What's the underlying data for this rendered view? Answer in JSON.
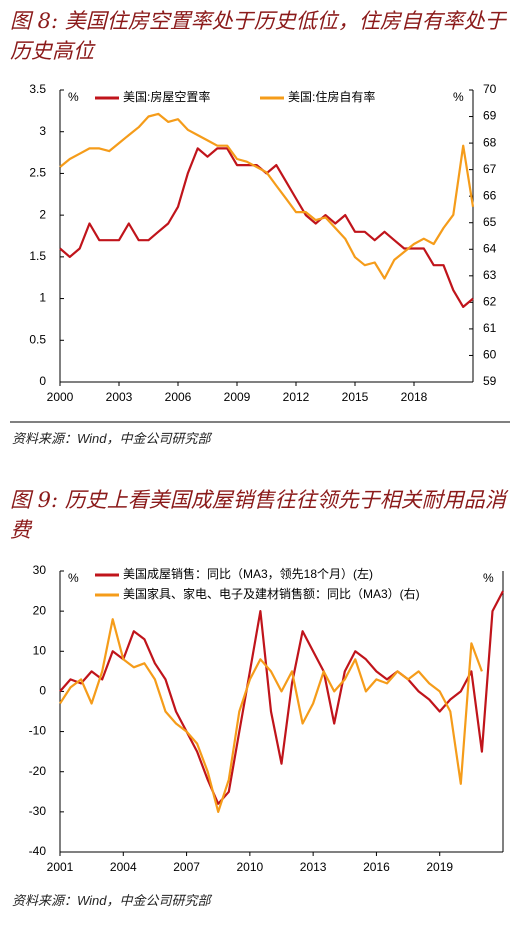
{
  "chart_data": [
    {
      "type": "line",
      "title": "图 8: 美国住房空置率处于历史低位，住房自有率处于历史高位",
      "source": "资料来源：Wind，中金公司研究部",
      "y_unit": "%",
      "y2_unit": "%",
      "legend": "top",
      "x": [
        2000,
        2000.5,
        2001,
        2001.5,
        2002,
        2002.5,
        2003,
        2003.5,
        2004,
        2004.5,
        2005,
        2005.5,
        2006,
        2006.5,
        2007,
        2007.5,
        2008,
        2008.5,
        2009,
        2009.5,
        2010,
        2010.5,
        2011,
        2011.5,
        2012,
        2012.5,
        2013,
        2013.5,
        2014,
        2014.5,
        2015,
        2015.5,
        2016,
        2016.5,
        2017,
        2017.5,
        2018,
        2018.5,
        2019,
        2019.5,
        2020,
        2020.5,
        2021
      ],
      "xlim": [
        2000,
        2021
      ],
      "xticks": [
        2000,
        2003,
        2006,
        2009,
        2012,
        2015,
        2018
      ],
      "ylim": [
        0,
        3.5
      ],
      "yticks": [
        0,
        0.5,
        1,
        1.5,
        2,
        2.5,
        3,
        3.5
      ],
      "y2lim": [
        59,
        70
      ],
      "y2ticks": [
        59,
        60,
        61,
        62,
        63,
        64,
        65,
        66,
        67,
        68,
        69,
        70
      ],
      "series": [
        {
          "name": "美国:房屋空置率",
          "color": "#c0141b",
          "values": [
            1.6,
            1.5,
            1.6,
            1.9,
            1.7,
            1.7,
            1.7,
            1.9,
            1.7,
            1.7,
            1.8,
            1.9,
            2.1,
            2.5,
            2.8,
            2.7,
            2.8,
            2.8,
            2.6,
            2.6,
            2.6,
            2.5,
            2.6,
            2.4,
            2.2,
            2.0,
            1.9,
            2.0,
            1.9,
            2.0,
            1.8,
            1.8,
            1.7,
            1.8,
            1.7,
            1.6,
            1.6,
            1.6,
            1.4,
            1.4,
            1.1,
            0.9,
            1.0
          ]
        },
        {
          "name": "美国:住房自有率",
          "color": "#f59c1a",
          "axis": "y2",
          "values": [
            67.1,
            67.4,
            67.6,
            67.8,
            67.8,
            67.7,
            68.0,
            68.3,
            68.6,
            69.0,
            69.1,
            68.8,
            68.9,
            68.5,
            68.3,
            68.1,
            67.9,
            67.9,
            67.4,
            67.3,
            67.1,
            66.9,
            66.4,
            65.9,
            65.4,
            65.4,
            65.1,
            65.2,
            64.8,
            64.4,
            63.7,
            63.4,
            63.5,
            62.9,
            63.6,
            63.9,
            64.2,
            64.4,
            64.2,
            64.8,
            65.3,
            67.9,
            65.6
          ]
        }
      ]
    },
    {
      "type": "line",
      "title": "图 9: 历史上看美国成屋销售往往领先于相关耐用品消费",
      "source": "资料来源：Wind，中金公司研究部",
      "y_unit": "%",
      "y2_unit": "%",
      "legend": "top",
      "x": [
        2001,
        2001.5,
        2002,
        2002.5,
        2003,
        2003.5,
        2004,
        2004.5,
        2005,
        2005.5,
        2006,
        2006.5,
        2007,
        2007.5,
        2008,
        2008.5,
        2009,
        2009.5,
        2010,
        2010.5,
        2011,
        2011.5,
        2012,
        2012.5,
        2013,
        2013.5,
        2014,
        2014.5,
        2015,
        2015.5,
        2016,
        2016.5,
        2017,
        2017.5,
        2018,
        2018.5,
        2019,
        2019.5,
        2020,
        2020.5,
        2021,
        2021.5,
        2022
      ],
      "xlim": [
        2001,
        2022
      ],
      "xticks": [
        2001,
        2004,
        2007,
        2010,
        2013,
        2016,
        2019
      ],
      "ylim": [
        -40,
        30
      ],
      "yticks": [
        -40,
        -30,
        -20,
        -10,
        0,
        10,
        20,
        30
      ],
      "y2lim": [
        -40,
        30
      ],
      "series": [
        {
          "name": "美国成屋销售：同比（MA3，领先18个月）(左)",
          "color": "#c0141b",
          "values": [
            0,
            3,
            2,
            5,
            3,
            10,
            8,
            15,
            13,
            7,
            3,
            -5,
            -10,
            -15,
            -22,
            -28,
            -25,
            -10,
            5,
            20,
            -5,
            -18,
            2,
            15,
            10,
            5,
            -8,
            5,
            10,
            8,
            5,
            3,
            5,
            3,
            0,
            -2,
            -5,
            -2,
            0,
            5,
            -15,
            20,
            25
          ]
        },
        {
          "name": "美国家具、家电、电子及建材销售额：同比（MA3）(右)",
          "color": "#f59c1a",
          "axis": "y2",
          "values": [
            -3,
            1,
            3,
            -3,
            5,
            18,
            8,
            6,
            7,
            3,
            -5,
            -8,
            -10,
            -13,
            -20,
            -30,
            -22,
            -5,
            3,
            8,
            5,
            0,
            5,
            -8,
            -3,
            5,
            0,
            3,
            8,
            0,
            3,
            2,
            5,
            3,
            5,
            2,
            0,
            -5,
            -23,
            12,
            5,
            null,
            null
          ]
        }
      ]
    }
  ]
}
